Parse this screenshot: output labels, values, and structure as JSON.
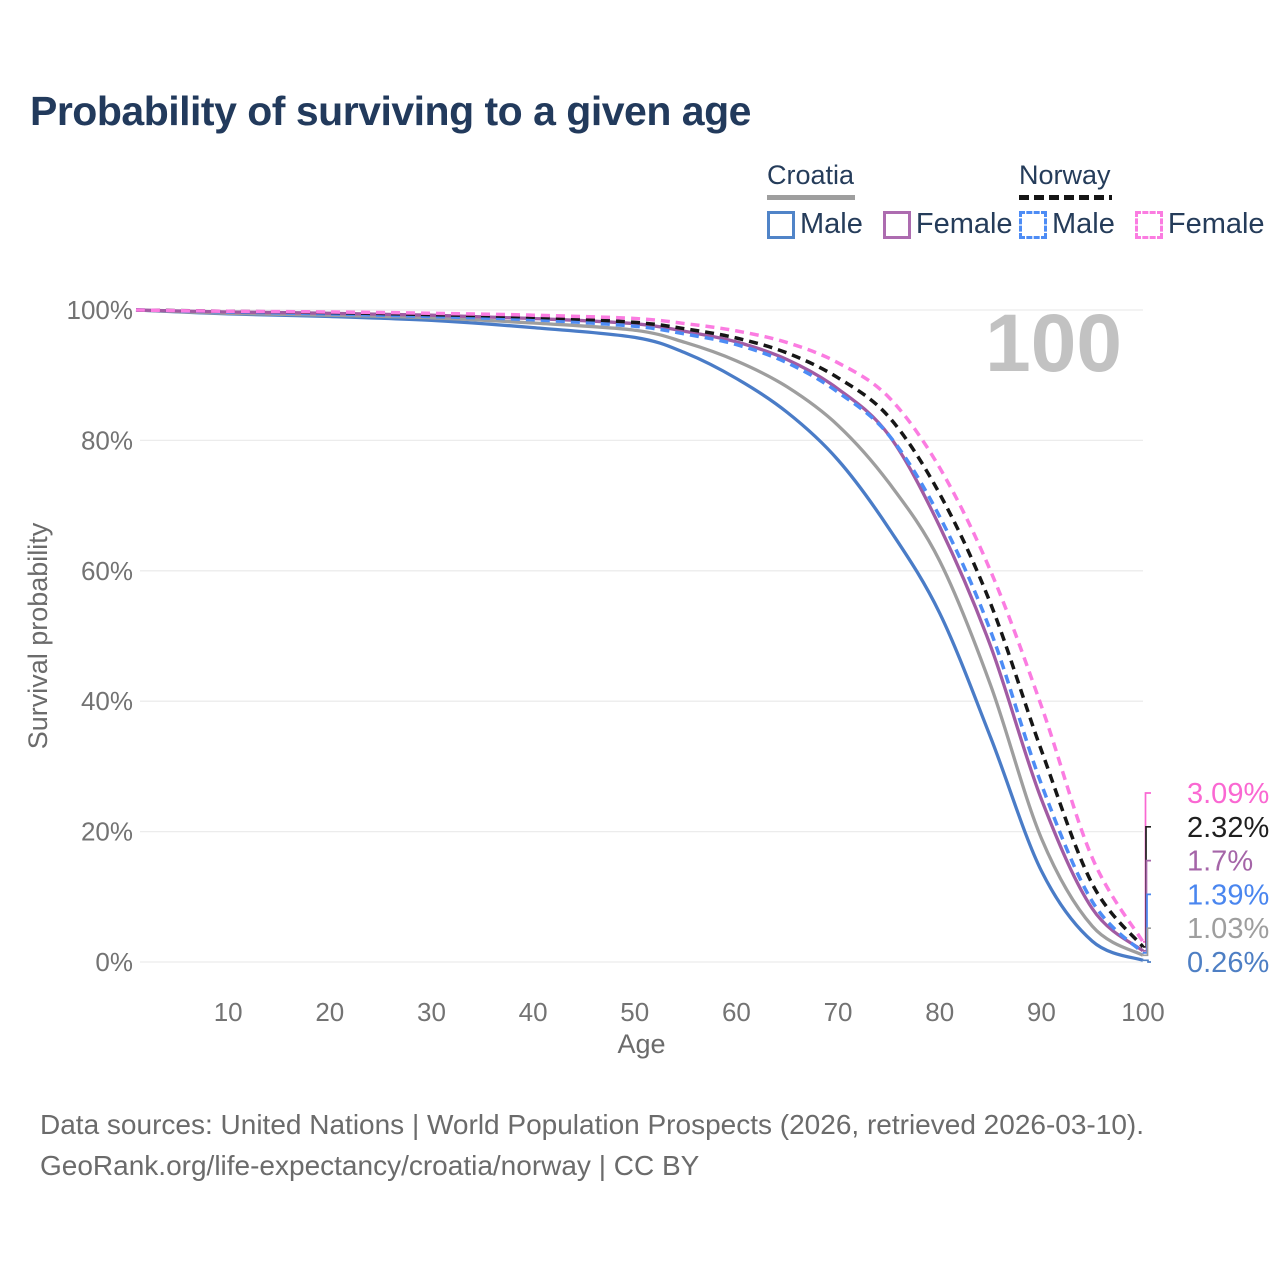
{
  "title": "Probability of surviving to a given age",
  "watermark": "100",
  "legend": {
    "croatia": {
      "name": "Croatia",
      "style": "solid",
      "line_color": "#9e9e9e",
      "male_label": "Male",
      "male_color": "#5084c8",
      "female_label": "Female",
      "female_color": "#ad6cb0"
    },
    "norway": {
      "name": "Norway",
      "style": "dashed",
      "line_color": "#151515",
      "male_label": "Male",
      "male_color": "#4d8cf5",
      "female_label": "Female",
      "female_color": "#fb7ce1"
    }
  },
  "axes": {
    "x": {
      "label": "Age",
      "min": 0,
      "max": 100,
      "ticks": [
        10,
        20,
        30,
        40,
        50,
        60,
        70,
        80,
        90,
        100
      ]
    },
    "y": {
      "label": "Survival probability",
      "min": 0,
      "max": 100,
      "ticks": [
        {
          "value": 0,
          "label": "0%"
        },
        {
          "value": 20,
          "label": "20%"
        },
        {
          "value": 40,
          "label": "40%"
        },
        {
          "value": 60,
          "label": "60%"
        },
        {
          "value": 80,
          "label": "80%"
        },
        {
          "value": 100,
          "label": "100%"
        }
      ],
      "grid": true
    }
  },
  "chart_data": {
    "type": "line",
    "title": "Probability of surviving to a given age",
    "xlabel": "Age",
    "ylabel": "Survival probability",
    "xlim": [
      0,
      100
    ],
    "ylim": [
      0,
      100
    ],
    "legend_position": "top-right",
    "ages": [
      0,
      10,
      20,
      30,
      40,
      50,
      55,
      60,
      65,
      70,
      75,
      80,
      85,
      90,
      95,
      100
    ],
    "series": [
      {
        "id": "croatia_male",
        "country": "Croatia",
        "sex": "Male",
        "color": "#4a7cc7",
        "dash": false,
        "values": [
          100,
          99.4,
          99.0,
          98.4,
          97.3,
          95.8,
          93.4,
          89.5,
          84.3,
          77.0,
          66.5,
          53.5,
          34.5,
          14.0,
          3.2,
          0.26
        ]
      },
      {
        "id": "croatia_total",
        "country": "Croatia",
        "sex": "Total",
        "color": "#9e9e9e",
        "dash": false,
        "values": [
          100,
          99.5,
          99.2,
          98.8,
          98.0,
          96.9,
          95.0,
          92.2,
          88.2,
          82.3,
          73.5,
          61.5,
          42.5,
          19.0,
          5.5,
          1.03
        ]
      },
      {
        "id": "croatia_female",
        "country": "Croatia",
        "sex": "Female",
        "color": "#a25ba3",
        "dash": false,
        "values": [
          100,
          99.7,
          99.5,
          99.2,
          98.7,
          97.9,
          96.7,
          95.1,
          92.4,
          87.9,
          80.8,
          66.8,
          48.5,
          25.0,
          8.2,
          1.7
        ]
      },
      {
        "id": "norway_male",
        "country": "Norway",
        "sex": "Male",
        "color": "#4d8cf5",
        "dash": true,
        "values": [
          100,
          99.7,
          99.4,
          99.0,
          98.5,
          97.5,
          96.3,
          94.7,
          91.9,
          87.4,
          80.8,
          68.3,
          50.8,
          27.3,
          9.3,
          1.39
        ]
      },
      {
        "id": "norway_total",
        "country": "Norway",
        "sex": "Total",
        "color": "#161616",
        "dash": true,
        "values": [
          100,
          99.8,
          99.6,
          99.3,
          98.9,
          98.1,
          97.1,
          95.7,
          93.4,
          89.6,
          83.6,
          71.8,
          55.0,
          32.5,
          12.0,
          2.32
        ]
      },
      {
        "id": "norway_female",
        "country": "Norway",
        "sex": "Female",
        "color": "#fb7ce1",
        "dash": true,
        "values": [
          100,
          99.8,
          99.7,
          99.5,
          99.2,
          98.7,
          97.9,
          96.8,
          95.0,
          91.9,
          86.6,
          75.8,
          60.0,
          39.3,
          16.0,
          3.09
        ]
      }
    ]
  },
  "end_labels": [
    {
      "flag": "norway",
      "value": "3.09%",
      "color": "#fa68d2",
      "series": "norway_female"
    },
    {
      "flag": "norway",
      "value": "2.32%",
      "color": "#1f1f1f",
      "series": "norway_total"
    },
    {
      "flag": "croatia",
      "value": "1.7%",
      "color": "#a565a8",
      "series": "croatia_female"
    },
    {
      "flag": "norway",
      "value": "1.39%",
      "color": "#4a86ef",
      "series": "norway_male"
    },
    {
      "flag": "croatia",
      "value": "1.03%",
      "color": "#9e9e9e",
      "series": "croatia_total"
    },
    {
      "flag": "croatia",
      "value": "0.26%",
      "color": "#4e7fc4",
      "series": "croatia_male"
    }
  ],
  "footer": {
    "line1": "Data sources: United Nations | World Population Prospects (2026, retrieved 2026-03-10).",
    "line2": "GeoRank.org/life-expectancy/croatia/norway | CC BY"
  }
}
